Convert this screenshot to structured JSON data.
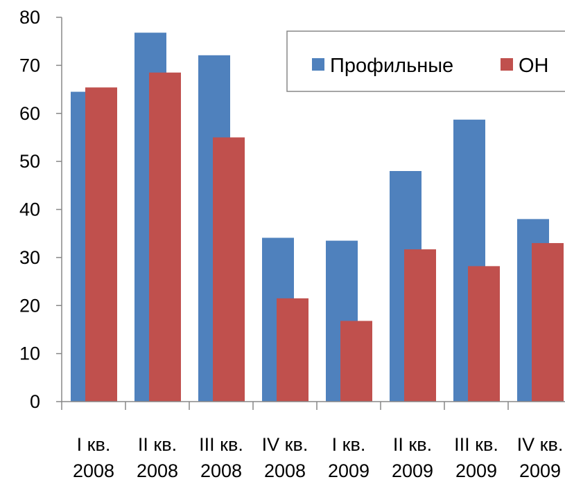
{
  "chart_data": {
    "type": "bar",
    "categories": [
      [
        "I кв.",
        "2008"
      ],
      [
        "II кв.",
        "2008"
      ],
      [
        "III кв.",
        "2008"
      ],
      [
        "IV кв.",
        "2008"
      ],
      [
        "I кв.",
        "2009"
      ],
      [
        "II кв.",
        "2009"
      ],
      [
        "III кв.",
        "2009"
      ],
      [
        "IV кв.",
        "2009"
      ]
    ],
    "series": [
      {
        "name": "Профильные",
        "color": "#4F81BD",
        "values": [
          64.5,
          76.8,
          72.1,
          34.1,
          33.5,
          48.0,
          58.7,
          38.0
        ]
      },
      {
        "name": "ОН",
        "color": "#C0504D",
        "values": [
          65.4,
          68.5,
          55.0,
          21.5,
          16.8,
          31.7,
          28.2,
          33.0
        ]
      }
    ],
    "ylim": [
      0,
      80
    ],
    "yticks": [
      0,
      10,
      20,
      30,
      40,
      50,
      60,
      70,
      80
    ],
    "grid": false,
    "legend_position": "top-right",
    "title": "",
    "xlabel": "",
    "ylabel": ""
  }
}
